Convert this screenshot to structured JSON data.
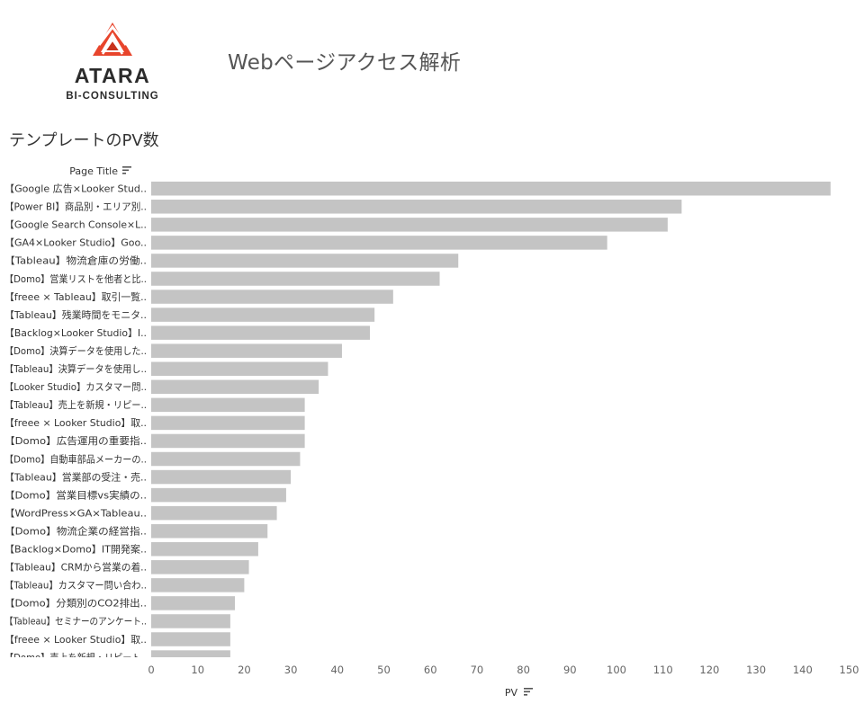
{
  "logo": {
    "brand": "ATARA",
    "sub": "BI-CONSULTING",
    "color": "#e8452c"
  },
  "dashboard_title": "Webページアクセス解析",
  "sheet_title": "テンプレートのPV数",
  "chart_data": {
    "type": "bar",
    "orientation": "horizontal",
    "row_header": "Page Title",
    "xlabel": "PV",
    "xlim": [
      0,
      150
    ],
    "xticks": [
      0,
      10,
      20,
      30,
      40,
      50,
      60,
      70,
      80,
      90,
      100,
      110,
      120,
      130,
      140,
      150
    ],
    "bar_color": "#c4c4c4",
    "categories": [
      "【Google 広告×Looker Stud..",
      "【Power BI】商品別・エリア別..",
      "【Google Search Console×L..",
      "【GA4×Looker Studio】Goo..",
      "【Tableau】物流倉庫の労働..",
      "【Domo】営業リストを他者と比..",
      "【freee × Tableau】取引一覧..",
      "【Tableau】残業時間をモニタ..",
      "【Backlog×Looker Studio】I..",
      "【Domo】決算データを使用した..",
      "【Tableau】決算データを使用し..",
      "【Looker Studio】カスタマー問..",
      "【Tableau】売上を新規・リピー..",
      "【freee × Looker Studio】取..",
      "【Domo】広告運用の重要指..",
      "【Domo】自動車部品メーカーの..",
      "【Tableau】営業部の受注・売..",
      "【Domo】営業目標vs実績の..",
      "【WordPress×GA×Tableau..",
      "【Domo】物流企業の経営指..",
      "【Backlog×Domo】IT開発案..",
      "【Tableau】CRMから営業の着..",
      "【Tableau】カスタマー問い合わ..",
      "【Domo】分類別のCO2排出..",
      "【Tableau】セミナーのアンケート..",
      "【freee × Looker Studio】取..",
      "【Domo】売上を新規・リピート.."
    ],
    "values": [
      146,
      114,
      111,
      98,
      66,
      62,
      52,
      48,
      47,
      41,
      38,
      36,
      33,
      33,
      33,
      32,
      30,
      29,
      27,
      25,
      23,
      21,
      20,
      18,
      17,
      17,
      17
    ]
  }
}
